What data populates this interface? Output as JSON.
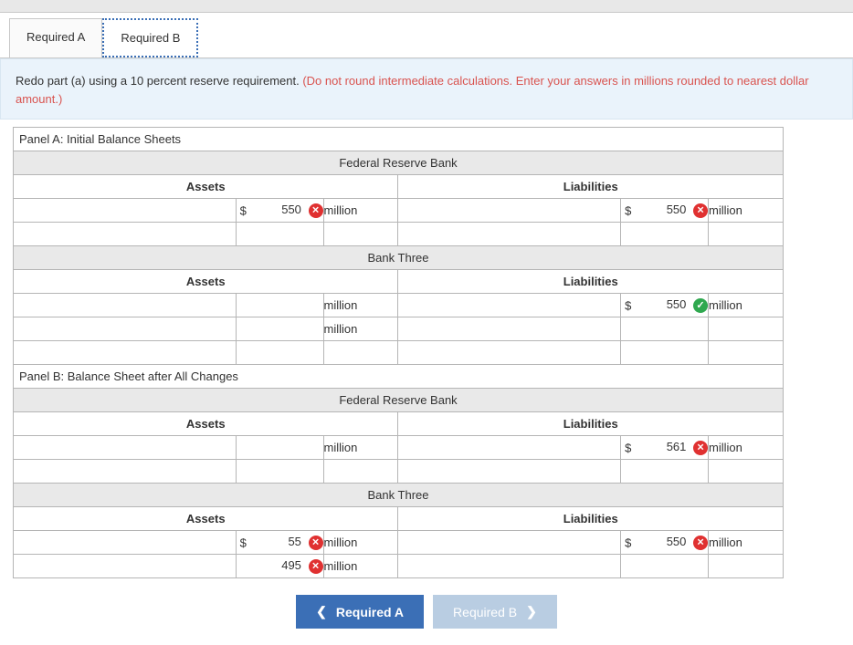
{
  "tabs": {
    "a": "Required A",
    "b": "Required B"
  },
  "instruction": {
    "black": "Redo part (a) using a 10 percent reserve requirement. ",
    "red": "(Do not round intermediate calculations. Enter your answers in millions rounded to nearest dollar amount.)"
  },
  "panelA": {
    "title": "Panel A: Initial Balance Sheets",
    "frb": {
      "title": "Federal Reserve Bank",
      "heads": {
        "assets": "Assets",
        "liab": "Liabilities"
      },
      "row1": {
        "assets": {
          "dollar": "$",
          "value": "550",
          "mark": "x",
          "unit": "million"
        },
        "liab": {
          "dollar": "$",
          "value": "550",
          "mark": "x",
          "unit": "million"
        }
      }
    },
    "bt": {
      "title": "Bank Three",
      "heads": {
        "assets": "Assets",
        "liab": "Liabilities"
      },
      "row1": {
        "assets": {
          "dollar": "",
          "value": "",
          "mark": "",
          "unit": "million"
        },
        "liab": {
          "dollar": "$",
          "value": "550",
          "mark": "check",
          "unit": "million"
        }
      },
      "row2": {
        "assets": {
          "dollar": "",
          "value": "",
          "mark": "",
          "unit": "million"
        },
        "liab": {
          "dollar": "",
          "value": "",
          "mark": "",
          "unit": ""
        }
      }
    }
  },
  "panelB": {
    "title": "Panel B: Balance Sheet after All Changes",
    "frb": {
      "title": "Federal Reserve Bank",
      "heads": {
        "assets": "Assets",
        "liab": "Liabilities"
      },
      "row1": {
        "assets": {
          "dollar": "",
          "value": "",
          "mark": "",
          "unit": "million"
        },
        "liab": {
          "dollar": "$",
          "value": "561",
          "mark": "x",
          "unit": "million"
        }
      }
    },
    "bt": {
      "title": "Bank Three",
      "heads": {
        "assets": "Assets",
        "liab": "Liabilities"
      },
      "row1": {
        "assets": {
          "dollar": "$",
          "value": "55",
          "mark": "x",
          "unit": "million"
        },
        "liab": {
          "dollar": "$",
          "value": "550",
          "mark": "x",
          "unit": "million"
        }
      },
      "row2": {
        "assets": {
          "dollar": "",
          "value": "495",
          "mark": "x",
          "unit": "million"
        },
        "liab": {
          "dollar": "",
          "value": "",
          "mark": "",
          "unit": ""
        }
      }
    }
  },
  "nav": {
    "prev": "Required A",
    "next": "Required B"
  },
  "colors": {
    "tab_active_border": "#3b6fb6",
    "instruction_bg": "#eaf3fb",
    "instruction_red": "#d9534f",
    "section_bg": "#e9e9e9",
    "border": "#b5b5b5",
    "mark_x": "#e03131",
    "mark_check": "#2fa84f",
    "btn_prev": "#3b6fb6",
    "btn_next": "#b9cde2"
  }
}
